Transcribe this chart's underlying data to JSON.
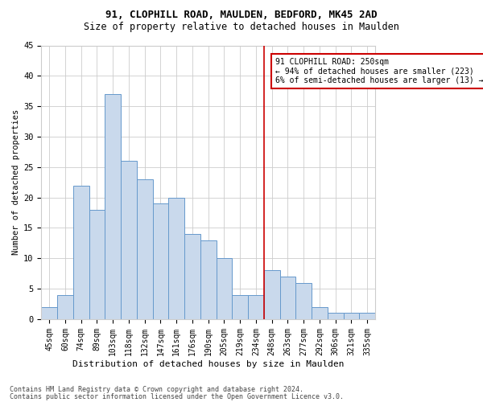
{
  "title1": "91, CLOPHILL ROAD, MAULDEN, BEDFORD, MK45 2AD",
  "title2": "Size of property relative to detached houses in Maulden",
  "xlabel": "Distribution of detached houses by size in Maulden",
  "ylabel": "Number of detached properties",
  "bar_labels": [
    "45sqm",
    "60sqm",
    "74sqm",
    "89sqm",
    "103sqm",
    "118sqm",
    "132sqm",
    "147sqm",
    "161sqm",
    "176sqm",
    "190sqm",
    "205sqm",
    "219sqm",
    "234sqm",
    "248sqm",
    "263sqm",
    "277sqm",
    "292sqm",
    "306sqm",
    "321sqm",
    "335sqm"
  ],
  "bar_values": [
    2,
    4,
    22,
    18,
    37,
    26,
    23,
    19,
    20,
    14,
    13,
    10,
    4,
    4,
    8,
    7,
    6,
    2,
    1,
    1,
    1
  ],
  "bar_color": "#c9d9ec",
  "bar_edge_color": "#6699cc",
  "vline_idx": 14,
  "vline_color": "#cc0000",
  "annotation_text": "91 CLOPHILL ROAD: 250sqm\n← 94% of detached houses are smaller (223)\n6% of semi-detached houses are larger (13) →",
  "annotation_box_color": "#cc0000",
  "ylim": [
    0,
    45
  ],
  "yticks": [
    0,
    5,
    10,
    15,
    20,
    25,
    30,
    35,
    40,
    45
  ],
  "footer1": "Contains HM Land Registry data © Crown copyright and database right 2024.",
  "footer2": "Contains public sector information licensed under the Open Government Licence v3.0.",
  "bg_color": "#ffffff",
  "grid_color": "#cccccc",
  "title1_fontsize": 9,
  "title2_fontsize": 8.5,
  "ylabel_fontsize": 7.5,
  "xlabel_fontsize": 8,
  "tick_fontsize": 7,
  "footer_fontsize": 6,
  "ann_fontsize": 7
}
